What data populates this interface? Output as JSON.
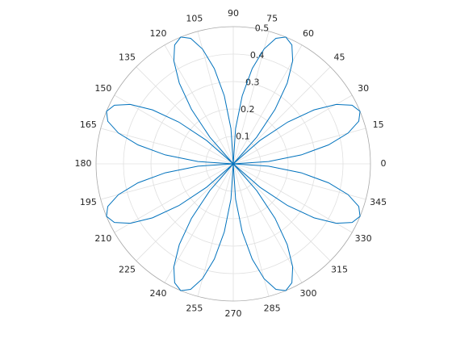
{
  "chart_data": {
    "type": "polar",
    "theta": [
      0,
      3.75,
      7.5,
      11.25,
      15,
      18.75,
      22.5,
      26.25,
      30,
      33.75,
      37.5,
      41.25,
      45,
      48.75,
      52.5,
      56.25,
      60,
      63.75,
      67.5,
      71.25,
      75,
      78.75,
      82.5,
      86.25,
      90,
      93.75,
      97.5,
      101.25,
      105,
      108.75,
      112.5,
      116.25,
      120,
      123.75,
      127.5,
      131.25,
      135,
      138.75,
      142.5,
      146.25,
      150,
      153.75,
      157.5,
      161.25,
      165,
      168.75,
      172.5,
      176.25,
      180,
      183.75,
      187.5,
      191.25,
      195,
      198.75,
      202.5,
      206.25,
      210,
      213.75,
      217.5,
      221.25,
      225,
      228.75,
      232.5,
      236.25,
      240,
      243.75,
      247.5,
      251.25,
      255,
      258.75,
      262.5,
      266.25,
      270,
      273.75,
      277.5,
      281.25,
      285,
      288.75,
      292.5,
      296.25,
      300,
      303.75,
      307.5,
      311.25,
      315,
      318.75,
      322.5,
      326.25,
      330,
      333.75,
      337.5,
      341.25,
      345,
      348.75,
      352.5,
      356.25,
      360
    ],
    "values": [
      0,
      0.129,
      0.25,
      0.354,
      0.433,
      0.483,
      0.5,
      0.483,
      0.433,
      0.354,
      0.25,
      0.129,
      0,
      0.129,
      0.25,
      0.354,
      0.433,
      0.483,
      0.5,
      0.483,
      0.433,
      0.354,
      0.25,
      0.129,
      0,
      0.129,
      0.25,
      0.354,
      0.433,
      0.483,
      0.5,
      0.483,
      0.433,
      0.354,
      0.25,
      0.129,
      0,
      0.129,
      0.25,
      0.354,
      0.433,
      0.483,
      0.5,
      0.483,
      0.433,
      0.354,
      0.25,
      0.129,
      0,
      0.129,
      0.25,
      0.354,
      0.433,
      0.483,
      0.5,
      0.483,
      0.433,
      0.354,
      0.25,
      0.129,
      0,
      0.129,
      0.25,
      0.354,
      0.433,
      0.483,
      0.5,
      0.483,
      0.433,
      0.354,
      0.25,
      0.129,
      0,
      0.129,
      0.25,
      0.354,
      0.433,
      0.483,
      0.5,
      0.483,
      0.433,
      0.354,
      0.25,
      0.129,
      0,
      0.129,
      0.25,
      0.354,
      0.433,
      0.483,
      0.5,
      0.483,
      0.433,
      0.354,
      0.25,
      0.129,
      0
    ],
    "color": "#0072bd",
    "rlim": [
      0,
      0.5
    ],
    "rticks": [
      0.1,
      0.2,
      0.3,
      0.4,
      0.5
    ],
    "thetaticks": [
      0,
      15,
      30,
      45,
      60,
      75,
      90,
      105,
      120,
      135,
      150,
      165,
      180,
      195,
      210,
      225,
      240,
      255,
      270,
      285,
      300,
      315,
      330,
      345
    ],
    "grid": true
  }
}
